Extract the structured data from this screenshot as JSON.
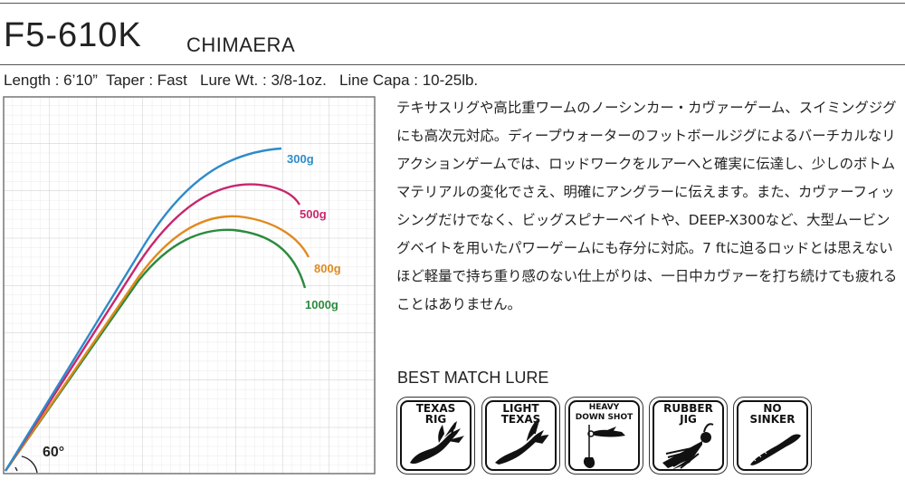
{
  "header": {
    "model": "F5-610K",
    "series": "CHIMAERA",
    "specs": "Length : 6’10”  Taper : Fast   Lure Wt. : 3/8-1oz.   Line Capa : 10-25lb."
  },
  "chart_data": {
    "type": "line",
    "title": "",
    "xlabel": "",
    "ylabel": "",
    "grid": true,
    "angle_label": "60°",
    "series": [
      {
        "name": "300g",
        "color": "#2e8bc9"
      },
      {
        "name": "500g",
        "color": "#c8266e"
      },
      {
        "name": "800g",
        "color": "#e08a1e"
      },
      {
        "name": "1000g",
        "color": "#2b8a3e"
      }
    ]
  },
  "description": "テキサスリグや高比重ワームのノーシンカー・カヴァーゲーム、スイミングジグにも高次元対応。ディープウォーターのフットボールジグによるバーチカルなリアクションゲームでは、ロッドワークをルアーへと確実に伝達し、少しのボトムマテリアルの変化でさえ、明確にアングラーに伝えます。また、カヴァーフィッシングだけでなく、ビッグスピナーベイトや、DEEP-X300など、大型ムービングベイトを用いたパワーゲームにも存分に対応。7 ftに迫るロッドとは思えないほど軽量で持ち重り感のない仕上がりは、一日中カヴァーを打ち続けても疲れることはありません。",
  "lures": {
    "title": "BEST MATCH LURE",
    "items": [
      {
        "line1": "TEXAS",
        "line2": "RIG",
        "icon": "texas-rig-worm-icon"
      },
      {
        "line1": "LIGHT",
        "line2": "TEXAS",
        "icon": "light-texas-worm-icon"
      },
      {
        "line1": "HEAVY",
        "line2": "DOWN SHOT",
        "icon": "down-shot-rig-icon"
      },
      {
        "line1": "RUBBER",
        "line2": "JIG",
        "icon": "rubber-jig-icon"
      },
      {
        "line1": "NO",
        "line2": "SINKER",
        "icon": "no-sinker-worm-icon"
      }
    ]
  }
}
